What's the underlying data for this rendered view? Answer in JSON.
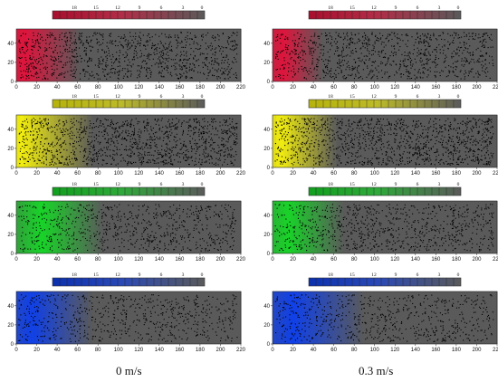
{
  "figure": {
    "captions": [
      "0 m/s",
      "0.3 m/s"
    ]
  },
  "colorbar": {
    "tick_labels": [
      "18",
      "15",
      "12",
      "9",
      "6",
      "3",
      "0"
    ],
    "max": 21,
    "min": 0
  },
  "axes": {
    "x_ticks": [
      0,
      20,
      40,
      60,
      80,
      100,
      120,
      140,
      160,
      180,
      200,
      220
    ],
    "y_ticks": [
      0,
      20,
      40
    ],
    "xlim": [
      0,
      220
    ],
    "ylim": [
      0,
      55
    ]
  },
  "chart_data": [
    {
      "type": "heatmap",
      "colormap": "red",
      "hot_x": 8,
      "spread": 55,
      "dot_count": 1100,
      "colorbar": [
        "18",
        "15",
        "12",
        "9",
        "6",
        "3",
        "0"
      ]
    },
    {
      "type": "heatmap",
      "colormap": "red",
      "hot_x": 10,
      "spread": 40,
      "dot_count": 1000,
      "colorbar": [
        "18",
        "15",
        "12",
        "9",
        "6",
        "3",
        "0"
      ]
    },
    {
      "type": "heatmap",
      "colormap": "yellow",
      "hot_x": 5,
      "spread": 70,
      "dot_count": 1300,
      "colorbar": [
        "18",
        "15",
        "12",
        "9",
        "6",
        "3",
        "0"
      ]
    },
    {
      "type": "heatmap",
      "colormap": "yellow",
      "hot_x": 8,
      "spread": 55,
      "dot_count": 1300,
      "colorbar": [
        "18",
        "15",
        "12",
        "9",
        "6",
        "3",
        "0"
      ]
    },
    {
      "type": "heatmap",
      "colormap": "green",
      "hot_x": 25,
      "spread": 60,
      "dot_count": 800,
      "colorbar": [
        "18",
        "15",
        "12",
        "9",
        "6",
        "3",
        "0"
      ]
    },
    {
      "type": "heatmap",
      "colormap": "green",
      "hot_x": 15,
      "spread": 55,
      "dot_count": 900,
      "colorbar": [
        "18",
        "15",
        "12",
        "9",
        "6",
        "3",
        "0"
      ]
    },
    {
      "type": "heatmap",
      "colormap": "blue",
      "hot_x": 15,
      "spread": 60,
      "dot_count": 700,
      "colorbar": [
        "18",
        "15",
        "12",
        "9",
        "6",
        "3",
        "0"
      ]
    },
    {
      "type": "heatmap",
      "colormap": "blue",
      "hot_x": 20,
      "spread": 70,
      "dot_count": 700,
      "colorbar": [
        "18",
        "15",
        "12",
        "9",
        "6",
        "3",
        "0"
      ]
    }
  ],
  "colors": {
    "red": "#e0143c",
    "yellow": "#f2ee10",
    "green": "#18d428",
    "blue": "#1040e8",
    "background": "#5a5a5a",
    "dot": "#000000"
  }
}
